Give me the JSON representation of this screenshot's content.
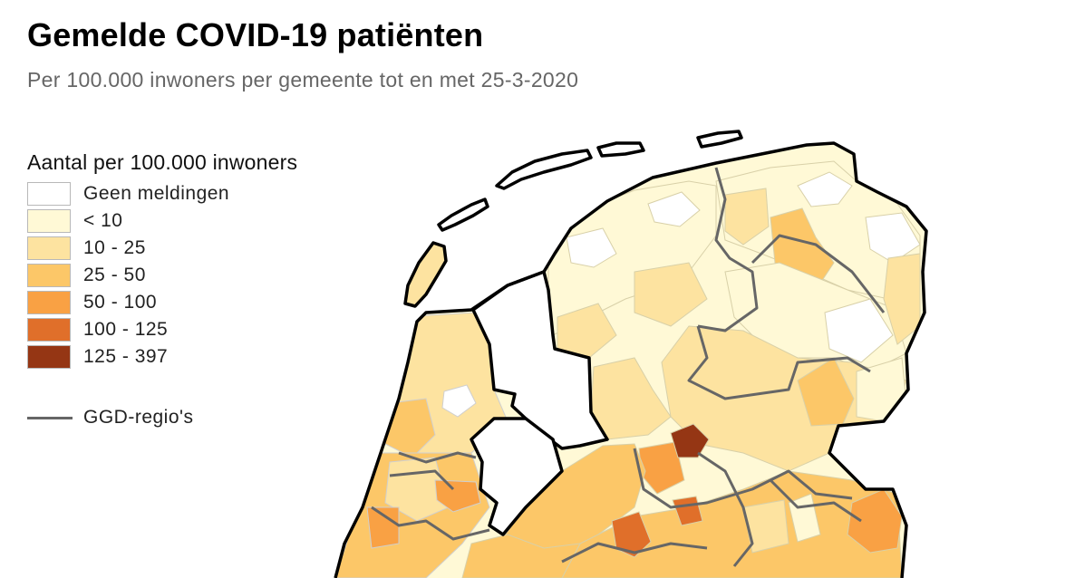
{
  "header": {
    "title": "Gemelde COVID-19 patiënten",
    "subtitle": "Per 100.000 inwoners per gemeente tot en met 25-3-2020"
  },
  "legend": {
    "title": "Aantal per 100.000 inwoners",
    "items": [
      {
        "label": "Geen meldingen",
        "color": "#ffffff"
      },
      {
        "label": "< 10",
        "color": "#fff9d6"
      },
      {
        "label": "10 - 25",
        "color": "#fde3a0"
      },
      {
        "label": "25 - 50",
        "color": "#fcc768"
      },
      {
        "label": "50 - 100",
        "color": "#f9a144"
      },
      {
        "label": "100 - 125",
        "color": "#e06f2a"
      },
      {
        "label": "125 - 397",
        "color": "#953614"
      }
    ],
    "ggd_label": "GGD-regio's",
    "ggd_color": "#666666"
  }
}
